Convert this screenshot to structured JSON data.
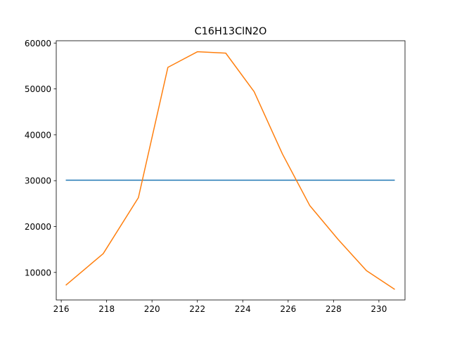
{
  "chart_data": {
    "type": "line",
    "title": "C16H13ClN2O",
    "xlabel": "",
    "ylabel": "",
    "xlim": [
      215.78,
      231.15
    ],
    "ylim": [
      4000,
      60500
    ],
    "x_ticks": [
      216,
      218,
      220,
      222,
      224,
      226,
      228,
      230
    ],
    "y_ticks": [
      10000,
      20000,
      30000,
      40000,
      50000,
      60000
    ],
    "grid": false,
    "legend": "none",
    "series": [
      {
        "color": "#1f77b4",
        "x": [
          216.2,
          230.7
        ],
        "y": [
          30100,
          30100
        ]
      },
      {
        "color": "#ff7f0e",
        "x": [
          216.2,
          217.85,
          219.4,
          220.7,
          222.0,
          223.25,
          224.5,
          225.75,
          226.95,
          228.2,
          229.45,
          230.7
        ],
        "y": [
          7200,
          14100,
          26300,
          54700,
          58100,
          57800,
          49400,
          35800,
          24600,
          17200,
          10400,
          6300
        ]
      }
    ]
  }
}
